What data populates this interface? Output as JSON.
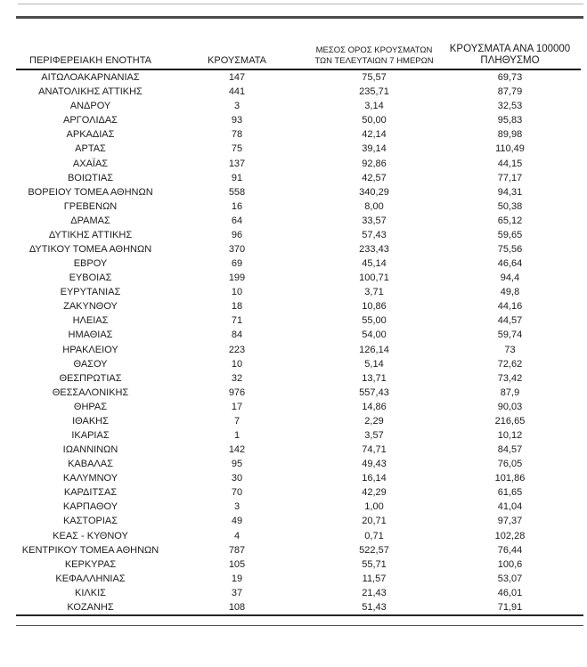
{
  "table": {
    "headers": {
      "col1": "ΠΕΡΙΦΕΡΕΙΑΚΗ ΕΝΟΤΗΤΑ",
      "col2": "ΚΡΟΥΣΜΑΤΑ",
      "col3_line1": "ΜΕΣΟΣ ΟΡΟΣ ΚΡΟΥΣΜΑΤΩΝ",
      "col3_line2": "ΤΩΝ ΤΕΛΕΥΤΑΙΩΝ 7 ΗΜΕΡΩΝ",
      "col4_line1": "ΚΡΟΥΣΜΑΤΑ ΑΝΑ 100000",
      "col4_line2": "ΠΛΗΘΥΣΜΟ"
    },
    "rows": [
      [
        "ΑΙΤΩΛΟΑΚΑΡΝΑΝΙΑΣ",
        "147",
        "75,57",
        "69,73"
      ],
      [
        "ΑΝΑΤΟΛΙΚΗΣ ΑΤΤΙΚΗΣ",
        "441",
        "235,71",
        "87,79"
      ],
      [
        "ΑΝΔΡΟΥ",
        "3",
        "3,14",
        "32,53"
      ],
      [
        "ΑΡΓΟΛΙΔΑΣ",
        "93",
        "50,00",
        "95,83"
      ],
      [
        "ΑΡΚΑΔΙΑΣ",
        "78",
        "42,14",
        "89,98"
      ],
      [
        "ΑΡΤΑΣ",
        "75",
        "39,14",
        "110,49"
      ],
      [
        "ΑΧΑΪΑΣ",
        "137",
        "92,86",
        "44,15"
      ],
      [
        "ΒΟΙΩΤΙΑΣ",
        "91",
        "42,57",
        "77,17"
      ],
      [
        "ΒΟΡΕΙΟΥ ΤΟΜΕΑ ΑΘΗΝΩΝ",
        "558",
        "340,29",
        "94,31"
      ],
      [
        "ΓΡΕΒΕΝΩΝ",
        "16",
        "8,00",
        "50,38"
      ],
      [
        "ΔΡΑΜΑΣ",
        "64",
        "33,57",
        "65,12"
      ],
      [
        "ΔΥΤΙΚΗΣ ΑΤΤΙΚΗΣ",
        "96",
        "57,43",
        "59,65"
      ],
      [
        "ΔΥΤΙΚΟΥ ΤΟΜΕΑ ΑΘΗΝΩΝ",
        "370",
        "233,43",
        "75,56"
      ],
      [
        "ΕΒΡΟΥ",
        "69",
        "45,14",
        "46,64"
      ],
      [
        "ΕΥΒΟΙΑΣ",
        "199",
        "100,71",
        "94,4"
      ],
      [
        "ΕΥΡΥΤΑΝΙΑΣ",
        "10",
        "3,71",
        "49,8"
      ],
      [
        "ΖΑΚΥΝΘΟΥ",
        "18",
        "10,86",
        "44,16"
      ],
      [
        "ΗΛΕΙΑΣ",
        "71",
        "55,00",
        "44,57"
      ],
      [
        "ΗΜΑΘΙΑΣ",
        "84",
        "54,00",
        "59,74"
      ],
      [
        "ΗΡΑΚΛΕΙΟΥ",
        "223",
        "126,14",
        "73"
      ],
      [
        "ΘΑΣΟΥ",
        "10",
        "5,14",
        "72,62"
      ],
      [
        "ΘΕΣΠΡΩΤΙΑΣ",
        "32",
        "13,71",
        "73,42"
      ],
      [
        "ΘΕΣΣΑΛΟΝΙΚΗΣ",
        "976",
        "557,43",
        "87,9"
      ],
      [
        "ΘΗΡΑΣ",
        "17",
        "14,86",
        "90,03"
      ],
      [
        "ΙΘΑΚΗΣ",
        "7",
        "2,29",
        "216,65"
      ],
      [
        "ΙΚΑΡΙΑΣ",
        "1",
        "3,57",
        "10,12"
      ],
      [
        "ΙΩΑΝΝΙΝΩΝ",
        "142",
        "74,71",
        "84,57"
      ],
      [
        "ΚΑΒΑΛΑΣ",
        "95",
        "49,43",
        "76,05"
      ],
      [
        "ΚΑΛΥΜΝΟΥ",
        "30",
        "16,14",
        "101,86"
      ],
      [
        "ΚΑΡΔΙΤΣΑΣ",
        "70",
        "42,29",
        "61,65"
      ],
      [
        "ΚΑΡΠΑΘΟΥ",
        "3",
        "1,00",
        "41,04"
      ],
      [
        "ΚΑΣΤΟΡΙΑΣ",
        "49",
        "20,71",
        "97,37"
      ],
      [
        "ΚΕΑΣ - ΚΥΘΝΟΥ",
        "4",
        "0,71",
        "102,28"
      ],
      [
        "ΚΕΝΤΡΙΚΟΥ ΤΟΜΕΑ ΑΘΗΝΩΝ",
        "787",
        "522,57",
        "76,44"
      ],
      [
        "ΚΕΡΚΥΡΑΣ",
        "105",
        "55,71",
        "100,6"
      ],
      [
        "ΚΕΦΑΛΛΗΝΙΑΣ",
        "19",
        "11,57",
        "53,07"
      ],
      [
        "ΚΙΛΚΙΣ",
        "37",
        "21,43",
        "46,01"
      ],
      [
        "ΚΟΖΑΝΗΣ",
        "108",
        "51,43",
        "71,91"
      ]
    ]
  },
  "colors": {
    "text": "#1c1c1c",
    "rule_light_gray": "#b4b4b4",
    "rule_dark_gray": "#4a4a4a",
    "rule_black": "#141414",
    "background": "#ffffff"
  }
}
